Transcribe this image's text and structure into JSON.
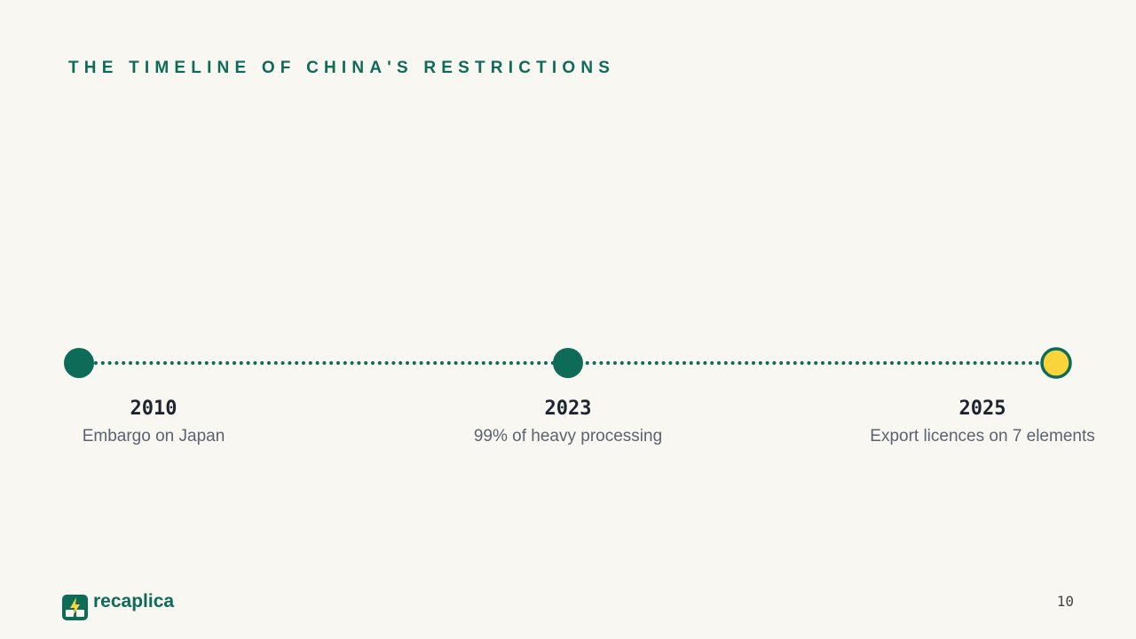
{
  "header": {
    "title": "THE TIMELINE OF CHINA'S RESTRICTIONS"
  },
  "timeline": {
    "events": [
      {
        "year": "2010",
        "text": "Embargo on Japan"
      },
      {
        "year": "2023",
        "text": "99% of heavy processing"
      },
      {
        "year": "2025",
        "text": "Export licences on 7 elements"
      }
    ]
  },
  "footer": {
    "brand": "recaplica",
    "page": "10"
  }
}
